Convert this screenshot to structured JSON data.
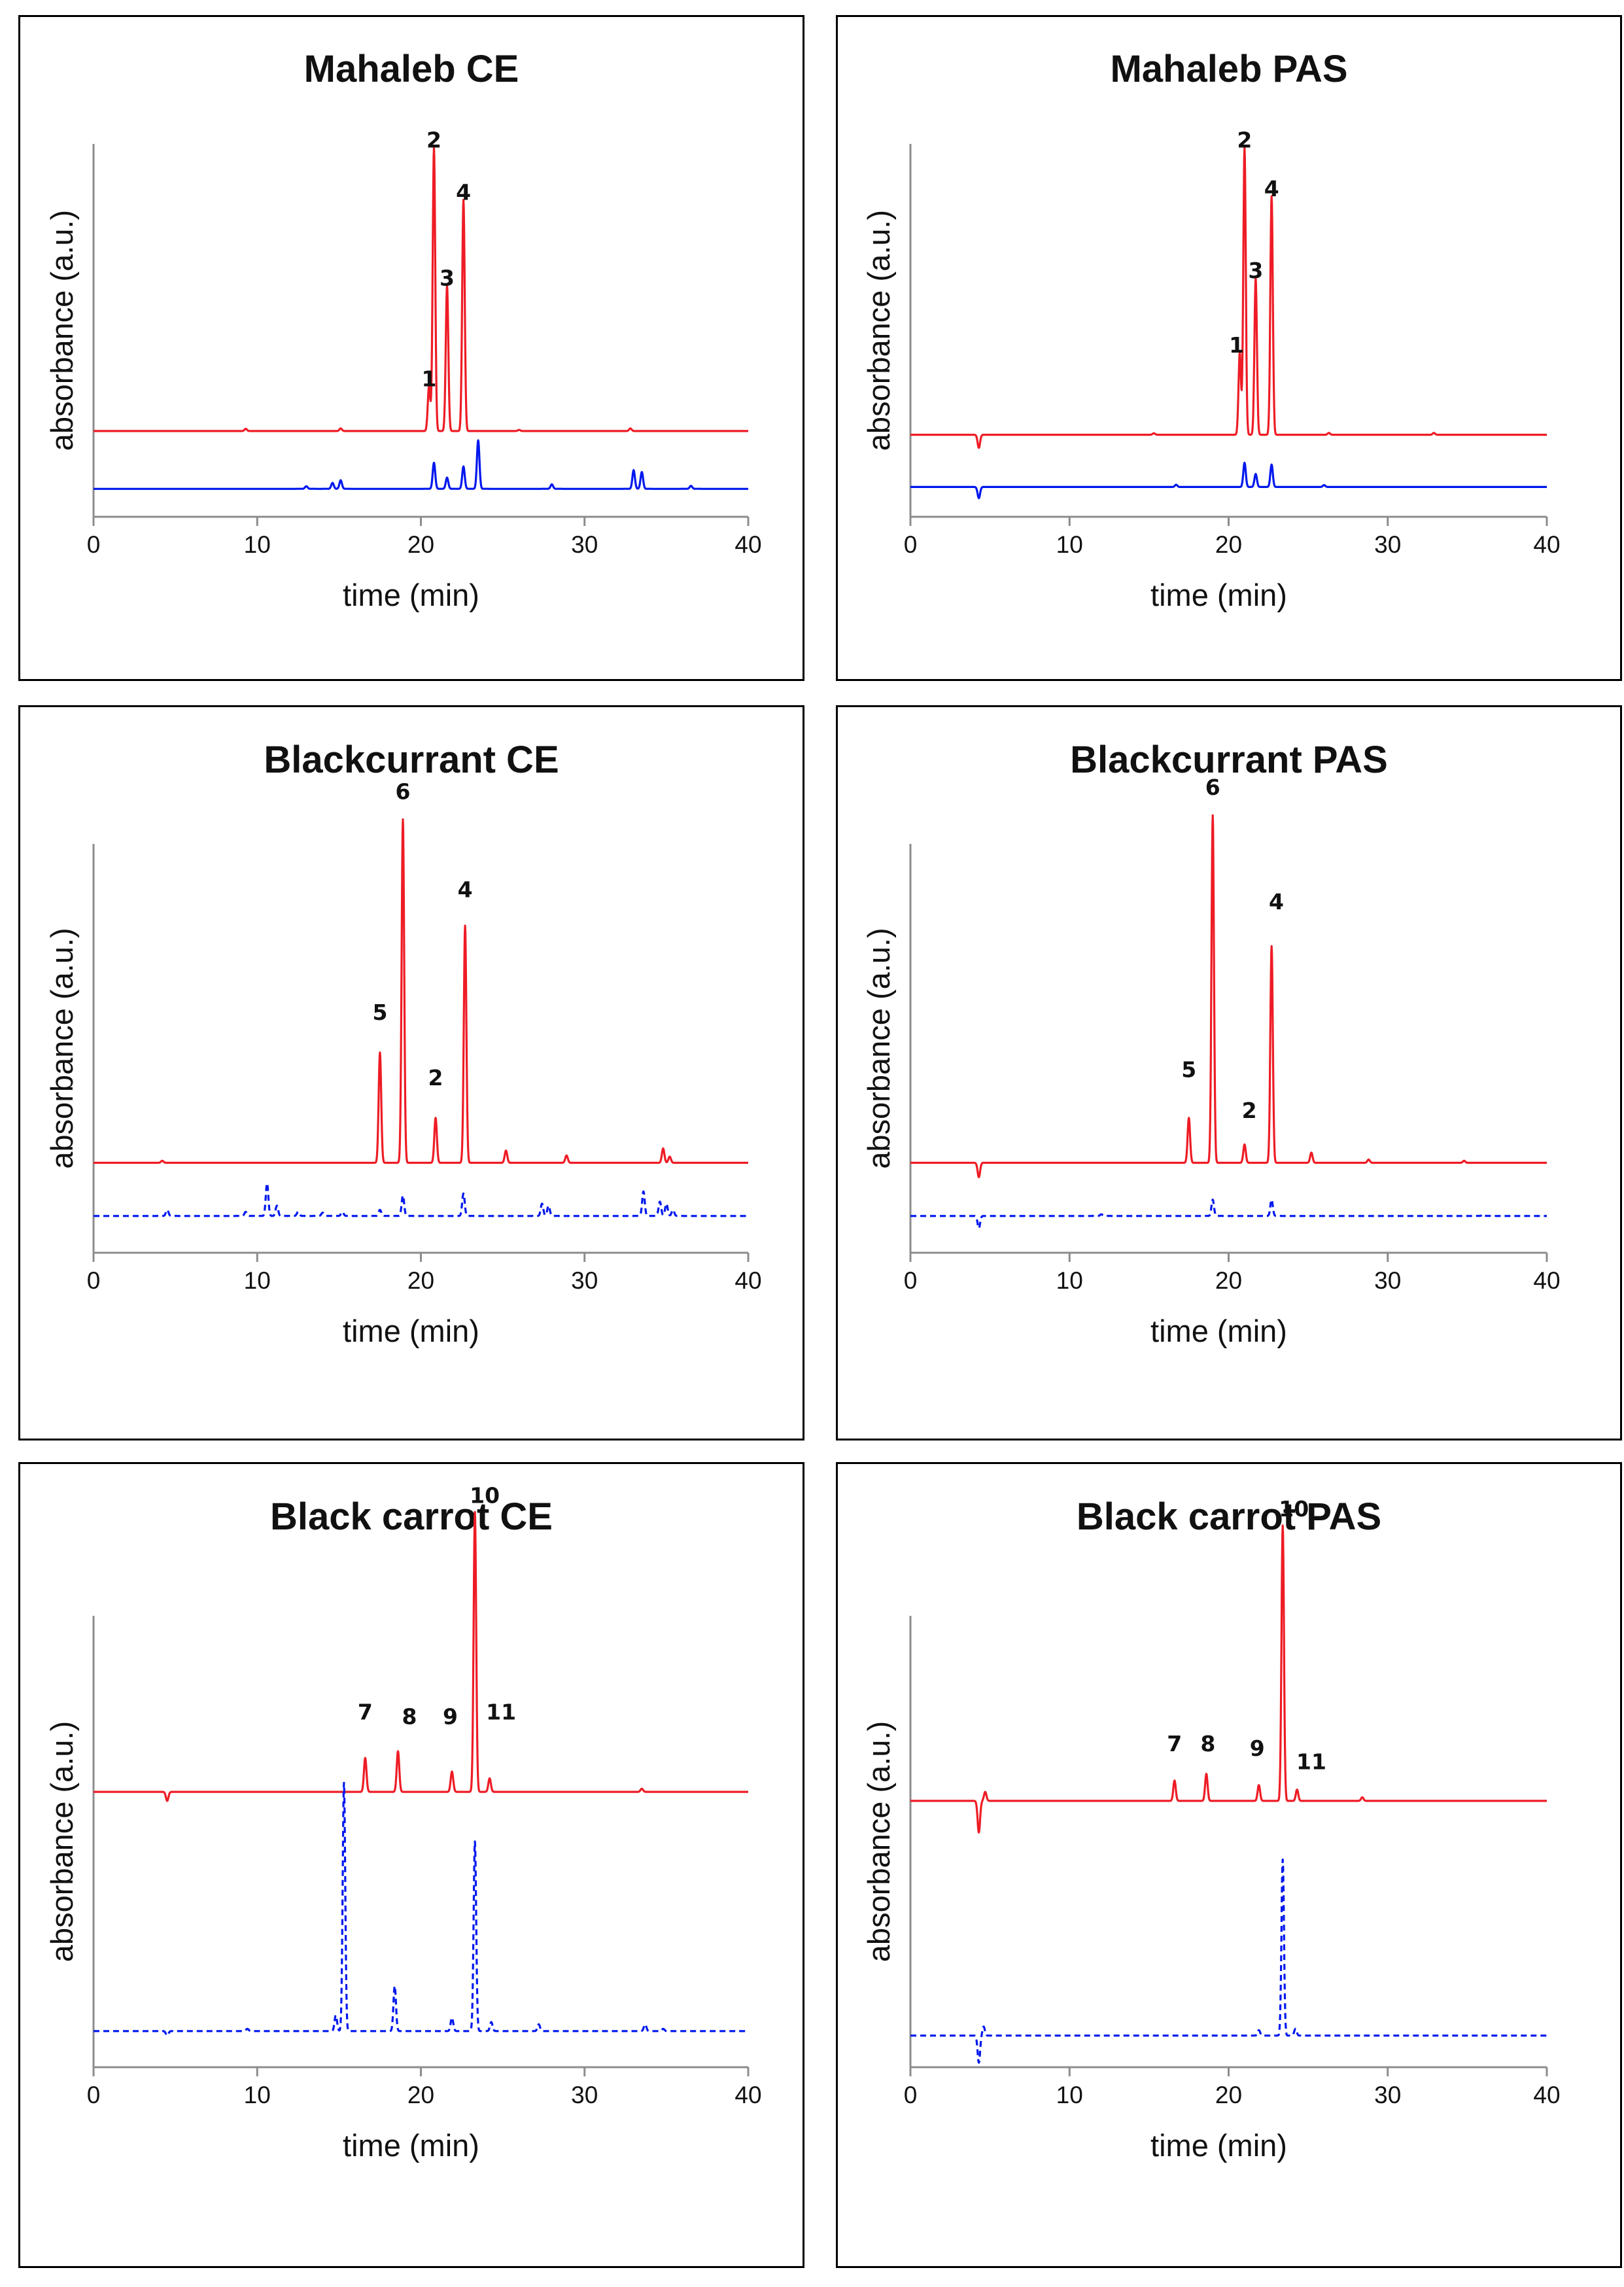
{
  "chart_data": [
    {
      "type": "line",
      "title": "Mahaleb CE",
      "xlabel": "time (min)",
      "ylabel": "absorbance (a.u.)",
      "xlim": [
        0,
        40
      ],
      "xticks": [
        0,
        10,
        20,
        30,
        40
      ],
      "ylim": [
        0,
        100
      ],
      "series": [
        {
          "name": "red trace",
          "color": "#ee1c25",
          "dash": "solid",
          "baseline": 23,
          "peaks": [
            [
              9.3,
              0.6
            ],
            [
              15.1,
              0.7
            ],
            [
              20.5,
              12
            ],
            [
              20.8,
              76
            ],
            [
              21.6,
              39
            ],
            [
              22.6,
              62
            ],
            [
              26,
              0.3
            ],
            [
              32.8,
              0.7
            ]
          ]
        },
        {
          "name": "blue trace",
          "color": "#0018ee",
          "dash": "solid",
          "baseline": 7.5,
          "peaks": [
            [
              13,
              0.7
            ],
            [
              14.6,
              1.6
            ],
            [
              15.1,
              2.3
            ],
            [
              20.8,
              7
            ],
            [
              21.6,
              3
            ],
            [
              22.6,
              6
            ],
            [
              23.5,
              13
            ],
            [
              28,
              1.2
            ],
            [
              33,
              5
            ],
            [
              33.5,
              4.5
            ],
            [
              36.5,
              0.8
            ]
          ]
        }
      ],
      "peak_labels": [
        {
          "label": "1",
          "x": 20.5,
          "y": 35
        },
        {
          "label": "2",
          "x": 20.8,
          "y": 99
        },
        {
          "label": "3",
          "x": 21.6,
          "y": 62
        },
        {
          "label": "4",
          "x": 22.6,
          "y": 85
        }
      ]
    },
    {
      "type": "line",
      "title": "Mahaleb PAS",
      "xlabel": "time (min)",
      "ylabel": "absorbance (a.u.)",
      "xlim": [
        0,
        40
      ],
      "xticks": [
        0,
        10,
        20,
        30,
        40
      ],
      "ylim": [
        0,
        100
      ],
      "series": [
        {
          "name": "red trace",
          "color": "#ee1c25",
          "dash": "solid",
          "baseline": 22,
          "peaks": [
            [
              4.3,
              -3.5
            ],
            [
              15.3,
              0.4
            ],
            [
              20.7,
              22
            ],
            [
              21,
              77
            ],
            [
              21.7,
              42
            ],
            [
              22.7,
              64
            ],
            [
              26.3,
              0.5
            ],
            [
              32.9,
              0.5
            ]
          ]
        },
        {
          "name": "blue trace",
          "color": "#0018ee",
          "dash": "solid",
          "baseline": 8,
          "peaks": [
            [
              4.3,
              -3
            ],
            [
              16.7,
              0.6
            ],
            [
              21,
              6.5
            ],
            [
              21.7,
              3.5
            ],
            [
              22.7,
              6
            ],
            [
              26,
              0.5
            ]
          ]
        }
      ],
      "peak_labels": [
        {
          "label": "1",
          "x": 20.5,
          "y": 44
        },
        {
          "label": "2",
          "x": 21,
          "y": 99
        },
        {
          "label": "3",
          "x": 21.7,
          "y": 64
        },
        {
          "label": "4",
          "x": 22.7,
          "y": 86
        }
      ]
    },
    {
      "type": "line",
      "title": "Blackcurrant CE",
      "xlabel": "time (min)",
      "ylabel": "absorbance (a.u.)",
      "xlim": [
        0,
        40
      ],
      "xticks": [
        0,
        10,
        20,
        30,
        40
      ],
      "ylim": [
        0,
        100
      ],
      "series": [
        {
          "name": "red trace",
          "color": "#ee1c25",
          "dash": "solid",
          "baseline": 22,
          "peaks": [
            [
              4.2,
              0.5
            ],
            [
              17.5,
              27
            ],
            [
              18.9,
              84
            ],
            [
              20.9,
              11
            ],
            [
              22.7,
              58
            ],
            [
              25.2,
              3
            ],
            [
              28.9,
              1.8
            ],
            [
              34.8,
              3.5
            ],
            [
              35.2,
              1.5
            ]
          ]
        },
        {
          "name": "blue trace",
          "color": "#0018ee",
          "dash": "dashed",
          "baseline": 9,
          "peaks": [
            [
              4.5,
              1.5
            ],
            [
              9.3,
              1
            ],
            [
              10.6,
              8
            ],
            [
              11.2,
              2.5
            ],
            [
              12.5,
              1
            ],
            [
              14,
              0.8
            ],
            [
              15.2,
              1
            ],
            [
              17.5,
              1.5
            ],
            [
              18.9,
              5
            ],
            [
              22.6,
              5.5
            ],
            [
              27.4,
              3
            ],
            [
              27.8,
              2.5
            ],
            [
              33.6,
              6
            ],
            [
              34.6,
              3.5
            ],
            [
              35,
              3
            ],
            [
              35.4,
              1.5
            ]
          ]
        }
      ],
      "peak_labels": [
        {
          "label": "5",
          "x": 17.5,
          "y": 57
        },
        {
          "label": "6",
          "x": 18.9,
          "y": 111
        },
        {
          "label": "2",
          "x": 20.9,
          "y": 41
        },
        {
          "label": "4",
          "x": 22.7,
          "y": 87
        }
      ]
    },
    {
      "type": "line",
      "title": "Blackcurrant PAS",
      "xlabel": "time (min)",
      "ylabel": "absorbance (a.u.)",
      "xlim": [
        0,
        40
      ],
      "xticks": [
        0,
        10,
        20,
        30,
        40
      ],
      "ylim": [
        0,
        100
      ],
      "series": [
        {
          "name": "red trace",
          "color": "#ee1c25",
          "dash": "solid",
          "baseline": 22,
          "peaks": [
            [
              4.3,
              -3.5
            ],
            [
              17.5,
              11
            ],
            [
              19,
              85
            ],
            [
              21,
              4.5
            ],
            [
              22.7,
              53
            ],
            [
              25.2,
              2.5
            ],
            [
              28.8,
              0.8
            ],
            [
              34.8,
              0.5
            ]
          ]
        },
        {
          "name": "blue trace",
          "color": "#0018ee",
          "dash": "dashed",
          "baseline": 9,
          "peaks": [
            [
              4.3,
              -3
            ],
            [
              12,
              0.4
            ],
            [
              19,
              4
            ],
            [
              22.7,
              4
            ],
            [
              36,
              0.4
            ]
          ]
        }
      ],
      "peak_labels": [
        {
          "label": "5",
          "x": 17.5,
          "y": 43
        },
        {
          "label": "6",
          "x": 19,
          "y": 112
        },
        {
          "label": "2",
          "x": 21.3,
          "y": 33
        },
        {
          "label": "4",
          "x": 23,
          "y": 84
        }
      ]
    },
    {
      "type": "line",
      "title": "Black carrot CE",
      "xlabel": "time (min)",
      "ylabel": "absorbance (a.u.)",
      "xlim": [
        0,
        40
      ],
      "xticks": [
        0,
        10,
        20,
        30,
        40
      ],
      "ylim": [
        0,
        100
      ],
      "series": [
        {
          "name": "red trace",
          "color": "#ee1c25",
          "dash": "solid",
          "baseline": 61,
          "peaks": [
            [
              4.5,
              -2
            ],
            [
              16.6,
              7.5
            ],
            [
              18.6,
              9
            ],
            [
              21.9,
              4.5
            ],
            [
              23.3,
              62
            ],
            [
              24.2,
              3
            ],
            [
              33.5,
              0.7
            ]
          ]
        },
        {
          "name": "blue trace",
          "color": "#0018ee",
          "dash": "dashed",
          "baseline": 8,
          "peaks": [
            [
              4.5,
              -1
            ],
            [
              9.4,
              0.5
            ],
            [
              14.8,
              3.5
            ],
            [
              15.3,
              55
            ],
            [
              18.4,
              10
            ],
            [
              21.9,
              3
            ],
            [
              23.3,
              42
            ],
            [
              24.3,
              2
            ],
            [
              27.2,
              1.5
            ],
            [
              33.7,
              1.5
            ],
            [
              34.8,
              0.5
            ]
          ]
        }
      ],
      "peak_labels": [
        {
          "label": "7",
          "x": 16.6,
          "y": 77
        },
        {
          "label": "8",
          "x": 19.3,
          "y": 76
        },
        {
          "label": "9",
          "x": 21.8,
          "y": 76
        },
        {
          "label": "10",
          "x": 23.9,
          "y": 125
        },
        {
          "label": "11",
          "x": 24.9,
          "y": 77
        }
      ]
    },
    {
      "type": "line",
      "title": "Black carrot PAS",
      "xlabel": "time (min)",
      "ylabel": "absorbance (a.u.)",
      "xlim": [
        0,
        40
      ],
      "xticks": [
        0,
        10,
        20,
        30,
        40
      ],
      "ylim": [
        0,
        100
      ],
      "series": [
        {
          "name": "red trace",
          "color": "#ee1c25",
          "dash": "solid",
          "baseline": 59,
          "peaks": [
            [
              4.3,
              -7
            ],
            [
              4.7,
              2
            ],
            [
              16.6,
              4.5
            ],
            [
              18.6,
              6
            ],
            [
              21.9,
              3.5
            ],
            [
              23.4,
              61
            ],
            [
              24.3,
              2.5
            ],
            [
              28.4,
              0.8
            ]
          ]
        },
        {
          "name": "blue trace",
          "color": "#0018ee",
          "dash": "dashed",
          "baseline": 7,
          "peaks": [
            [
              4.3,
              -6
            ],
            [
              4.6,
              2
            ],
            [
              21.9,
              1.2
            ],
            [
              23.4,
              39
            ],
            [
              24.2,
              1.5
            ]
          ]
        }
      ],
      "peak_labels": [
        {
          "label": "7",
          "x": 16.6,
          "y": 70
        },
        {
          "label": "8",
          "x": 18.7,
          "y": 70
        },
        {
          "label": "9",
          "x": 21.8,
          "y": 69
        },
        {
          "label": "10",
          "x": 24.1,
          "y": 122
        },
        {
          "label": "11",
          "x": 25.2,
          "y": 66
        }
      ]
    }
  ]
}
